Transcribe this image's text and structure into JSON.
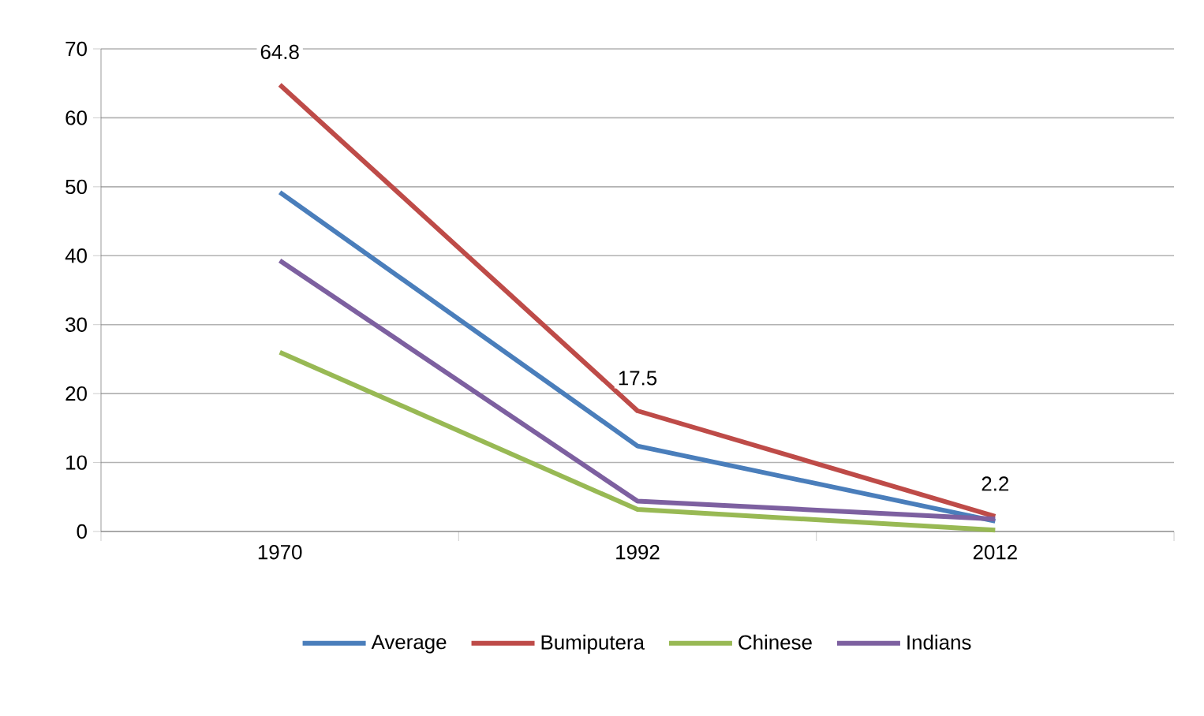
{
  "chart_data": {
    "type": "line",
    "categories": [
      "1970",
      "1992",
      "2012"
    ],
    "series": [
      {
        "name": "Average",
        "color": "#4a7ebb",
        "values": [
          49.2,
          12.4,
          1.5
        ]
      },
      {
        "name": "Bumiputera",
        "color": "#be4b48",
        "values": [
          64.8,
          17.5,
          2.2
        ],
        "value_labels": [
          "64.8",
          "17.5",
          "2.2"
        ]
      },
      {
        "name": "Chinese",
        "color": "#98b954",
        "values": [
          26.0,
          3.2,
          0.2
        ]
      },
      {
        "name": "Indians",
        "color": "#7d60a0",
        "values": [
          39.3,
          4.4,
          1.8
        ]
      }
    ],
    "ylim": [
      0,
      70
    ],
    "yticks": [
      0,
      10,
      20,
      30,
      40,
      50,
      60,
      70
    ],
    "grid": "y",
    "legend": "bottom",
    "marker": "none",
    "line_style": "solid"
  }
}
